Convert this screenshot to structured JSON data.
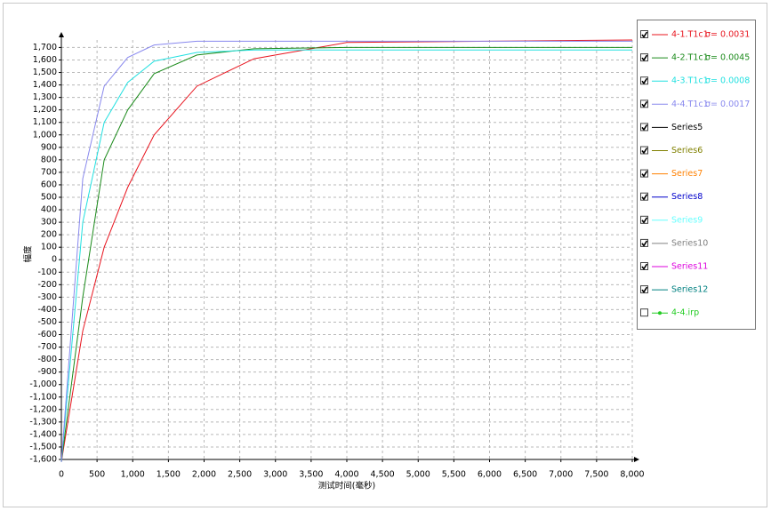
{
  "chart_data": {
    "type": "line",
    "x_label": "测试时间(毫秒)",
    "y_label": "幅度",
    "x": [
      0,
      300,
      600,
      930,
      1300,
      1900,
      2700,
      4000,
      8000
    ],
    "series": [
      {
        "name": "4-1.T1c1",
        "note": "σ= 0.0031",
        "color": "#e8141e",
        "checked": true,
        "values": [
          -1620,
          -570,
          100,
          580,
          1000,
          1390,
          1610,
          1740,
          1760
        ]
      },
      {
        "name": "4-2.T1c1",
        "note": "σ= 0.0045",
        "color": "#1a8a1a",
        "checked": true,
        "values": [
          -1620,
          -300,
          800,
          1200,
          1490,
          1640,
          1690,
          1700,
          1700
        ]
      },
      {
        "name": "4-3.T1c1",
        "note": "σ= 0.0008",
        "color": "#22e0e0",
        "checked": true,
        "values": [
          -1620,
          300,
          1100,
          1420,
          1590,
          1660,
          1680,
          1680,
          1680
        ]
      },
      {
        "name": "4-4.T1c1",
        "note": "σ= 0.0017",
        "color": "#8888ee",
        "checked": true,
        "values": [
          -1620,
          650,
          1390,
          1620,
          1720,
          1750,
          1750,
          1750,
          1750
        ]
      }
    ],
    "other_series": [
      {
        "name": "Series5",
        "color": "#000000",
        "checked": true
      },
      {
        "name": "Series6",
        "color": "#808000",
        "checked": true
      },
      {
        "name": "Series7",
        "color": "#ff8000",
        "checked": true
      },
      {
        "name": "Series8",
        "color": "#0000cc",
        "checked": true
      },
      {
        "name": "Series9",
        "color": "#66ffff",
        "checked": true
      },
      {
        "name": "Series10",
        "color": "#808080",
        "checked": true
      },
      {
        "name": "Series11",
        "color": "#dd00dd",
        "checked": true
      },
      {
        "name": "Series12",
        "color": "#008080",
        "checked": true
      },
      {
        "name": "4-4.irp",
        "color": "#22cc22",
        "checked": false,
        "marker": true
      }
    ],
    "xlim": [
      0,
      8000
    ],
    "xticks": [
      0,
      500,
      {
        "value": 1000,
        "label": "1,000"
      },
      {
        "value": 1500,
        "label": "1,500"
      },
      {
        "value": 2000,
        "label": "2,000"
      },
      {
        "value": 2500,
        "label": "2,500"
      },
      {
        "value": 3000,
        "label": "3,000"
      },
      {
        "value": 3500,
        "label": "3,500"
      },
      {
        "value": 4000,
        "label": "4,000"
      },
      {
        "value": 4500,
        "label": "4,500"
      },
      {
        "value": 5000,
        "label": "5,000"
      },
      {
        "value": 5500,
        "label": "5,500"
      },
      {
        "value": 6000,
        "label": "6,000"
      },
      {
        "value": 6500,
        "label": "6,500"
      },
      {
        "value": 7000,
        "label": "7,000"
      },
      {
        "value": 7500,
        "label": "7,500"
      },
      {
        "value": 8000,
        "label": "8,000"
      }
    ],
    "ylim": [
      -1600,
      1760
    ],
    "yticks": [
      {
        "value": -1600,
        "label": "-1,600"
      },
      {
        "value": -1500,
        "label": "-1,500"
      },
      {
        "value": -1400,
        "label": "-1,400"
      },
      {
        "value": -1300,
        "label": "-1,300"
      },
      {
        "value": -1200,
        "label": "-1,200"
      },
      {
        "value": -1100,
        "label": "-1,100"
      },
      {
        "value": -1000,
        "label": "-1,000"
      },
      -900,
      -800,
      -700,
      -600,
      -500,
      -400,
      -300,
      -200,
      -100,
      0,
      100,
      200,
      300,
      400,
      500,
      600,
      700,
      800,
      900,
      {
        "value": 1000,
        "label": "1,000"
      },
      {
        "value": 1100,
        "label": "1,100"
      },
      {
        "value": 1200,
        "label": "1,200"
      },
      {
        "value": 1300,
        "label": "1,300"
      },
      {
        "value": 1400,
        "label": "1,400"
      },
      {
        "value": 1500,
        "label": "1,500"
      },
      {
        "value": 1600,
        "label": "1,600"
      },
      {
        "value": 1700,
        "label": "1,700"
      }
    ],
    "grid": true
  }
}
